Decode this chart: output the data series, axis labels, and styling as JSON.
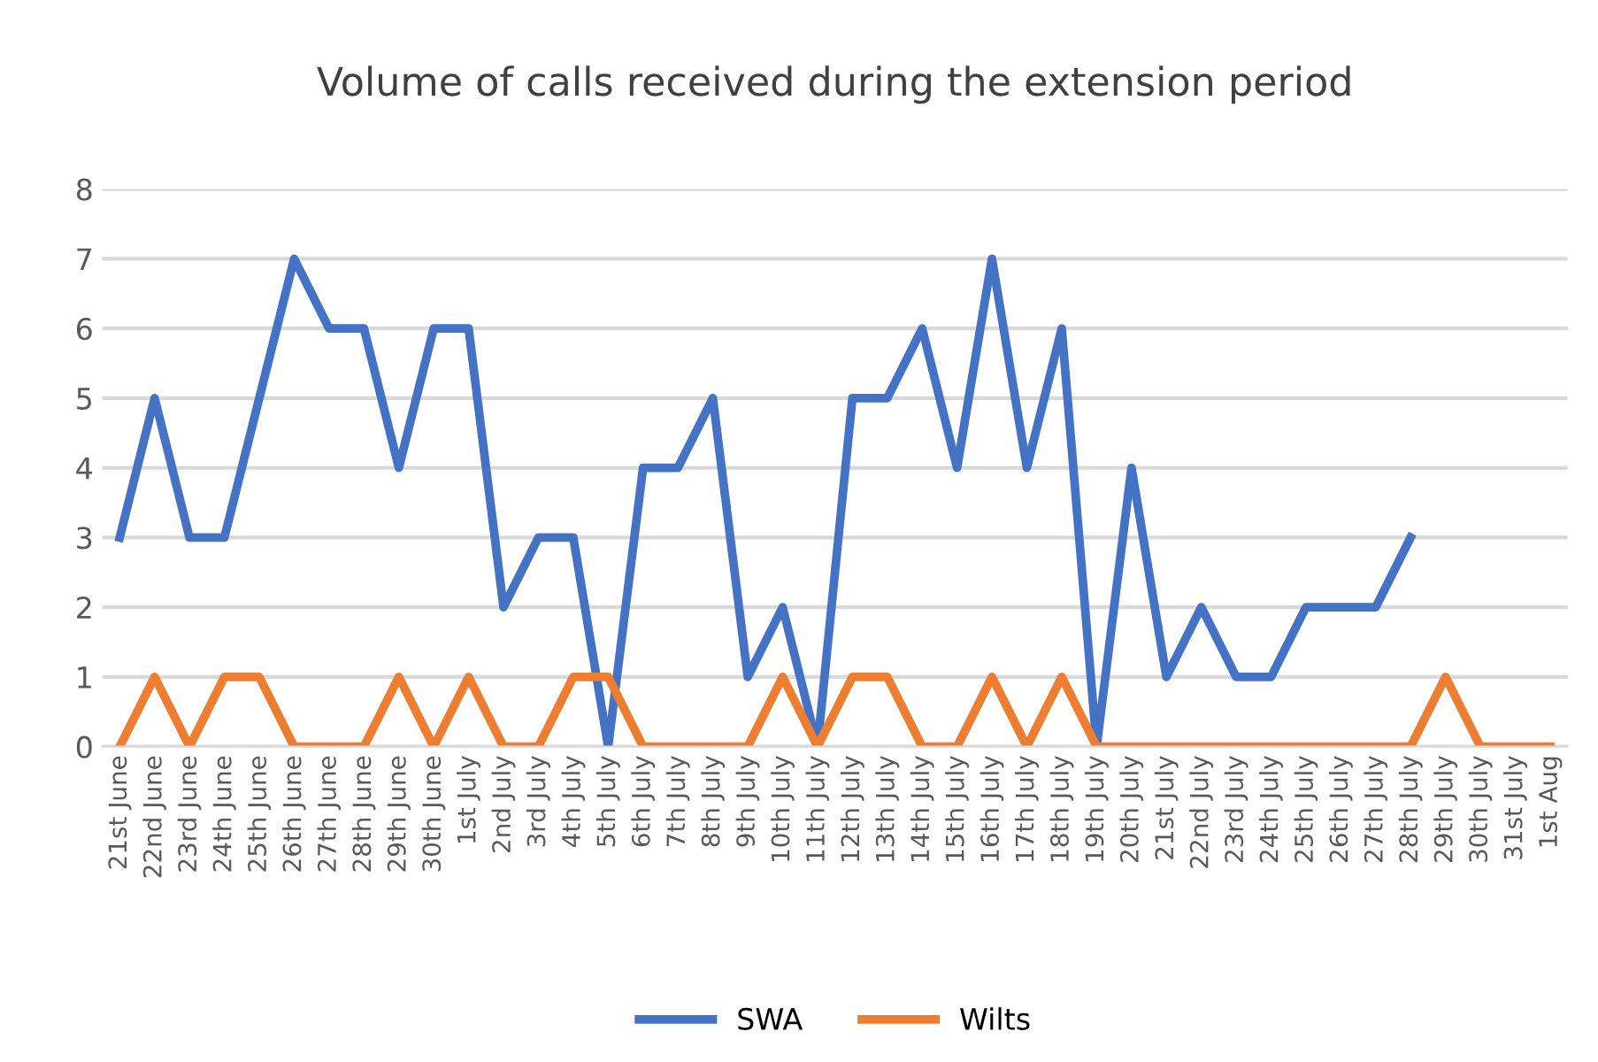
{
  "chart_data": {
    "type": "line",
    "title": "Volume of calls received during the extension period",
    "categories": [
      "21st June",
      "22nd June",
      "23rd June",
      "24th June",
      "25th June",
      "26th June",
      "27th June",
      "28th June",
      "29th June",
      "30th June",
      "1st July",
      "2nd July",
      "3rd July",
      "4th July",
      "5th July",
      "6th July",
      "7th July",
      "8th July",
      "9th July",
      "10th July",
      "11th July",
      "12th July",
      "13th July",
      "14th July",
      "15th July",
      "16th July",
      "17th July",
      "18th July",
      "19th July",
      "20th July",
      "21st July",
      "22nd July",
      "23rd July",
      "24th July",
      "25th July",
      "26th July",
      "27th July",
      "28th July",
      "29th July",
      "30th July",
      "31st July",
      "1st Aug"
    ],
    "series": [
      {
        "name": "SWA",
        "color": "#4472c4",
        "values": [
          3,
          5,
          3,
          3,
          5,
          7,
          6,
          6,
          4,
          6,
          6,
          2,
          3,
          3,
          0,
          4,
          4,
          5,
          1,
          2,
          0,
          5,
          5,
          6,
          4,
          7,
          4,
          6,
          0,
          4,
          1,
          2,
          1,
          1,
          2,
          2,
          2,
          3,
          null,
          null,
          null,
          null
        ]
      },
      {
        "name": "Wilts",
        "color": "#ed7d31",
        "values": [
          0,
          1,
          0,
          1,
          1,
          0,
          0,
          0,
          1,
          0,
          1,
          0,
          0,
          1,
          1,
          0,
          0,
          0,
          0,
          1,
          0,
          1,
          1,
          0,
          0,
          1,
          0,
          1,
          0,
          0,
          0,
          0,
          0,
          0,
          0,
          0,
          0,
          0,
          1,
          0,
          0,
          0
        ]
      }
    ],
    "ylim": [
      0,
      8
    ],
    "yticks": [
      0,
      1,
      2,
      3,
      4,
      5,
      6,
      7,
      8
    ],
    "grid": "y",
    "legend": "bottom",
    "marker": "none",
    "line_style": "solid"
  }
}
